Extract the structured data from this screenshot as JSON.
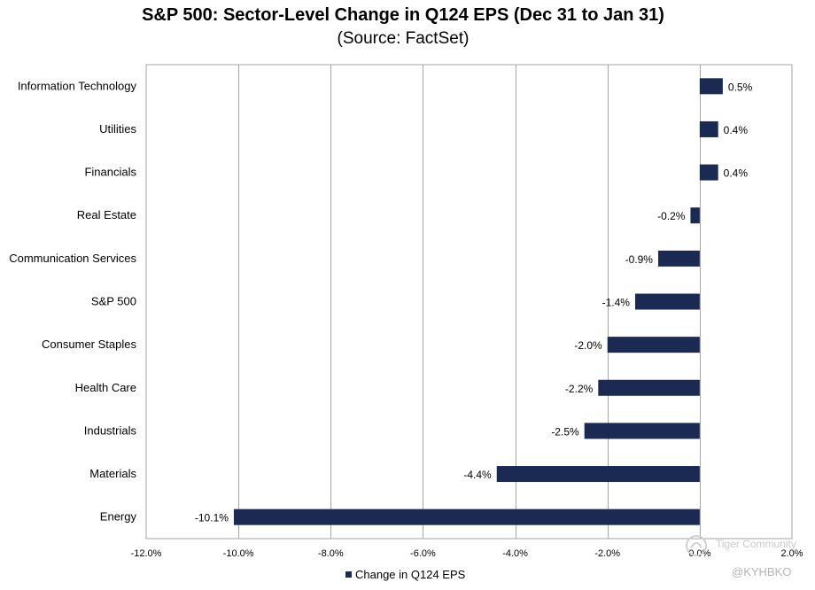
{
  "chart_data": {
    "type": "bar",
    "orientation": "horizontal",
    "title": "S&P 500: Sector-Level Change in Q124 EPS (Dec 31 to Jan 31)",
    "subtitle": "(Source: FactSet)",
    "categories": [
      "Information Technology",
      "Utilities",
      "Financials",
      "Real Estate",
      "Communication Services",
      "S&P 500",
      "Consumer Staples",
      "Health Care",
      "Industrials",
      "Materials",
      "Energy"
    ],
    "series": [
      {
        "name": "Change in Q124 EPS",
        "values": [
          0.5,
          0.4,
          0.4,
          -0.2,
          -0.9,
          -1.4,
          -2.0,
          -2.2,
          -2.5,
          -4.4,
          -10.1
        ],
        "labels": [
          "0.5%",
          "0.4%",
          "0.4%",
          "-0.2%",
          "-0.9%",
          "-1.4%",
          "-2.0%",
          "-2.2%",
          "-2.5%",
          "-4.4%",
          "-10.1%"
        ]
      }
    ],
    "xlim": [
      -12,
      2
    ],
    "xticks": [
      -12,
      -10,
      -8,
      -6,
      -4,
      -2,
      0,
      2
    ],
    "xtick_labels": [
      "-12.0%",
      "-10.0%",
      "-8.0%",
      "-6.0%",
      "-4.0%",
      "-2.0%",
      "0.0%",
      "2.0%"
    ],
    "grid": true,
    "legend_position": "bottom",
    "bar_color": "#1b2a52",
    "grid_color": "#a6a6a6"
  },
  "watermark": {
    "community": "Tiger Community",
    "handle": "@KYHBKO"
  }
}
